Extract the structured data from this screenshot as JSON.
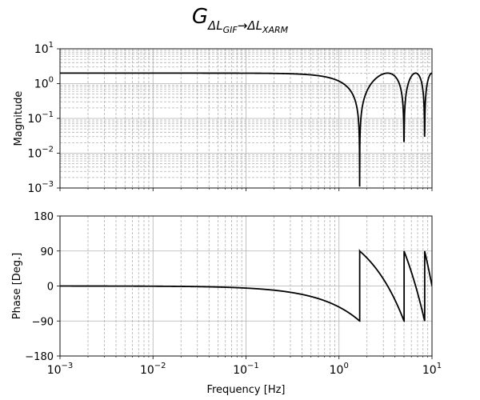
{
  "title": {
    "main": "G",
    "sub_left": "ΔL",
    "sub_left_index": "GIF",
    "arrow": "→",
    "sub_right": "ΔL",
    "sub_right_index": "XARM"
  },
  "chart_data": [
    {
      "type": "line",
      "panel": "magnitude",
      "xscale": "log",
      "yscale": "log",
      "xlim": [
        0.001,
        10
      ],
      "ylim": [
        0.001,
        10
      ],
      "xlabel": "",
      "ylabel": "Magnitude",
      "yticks": [
        0.001,
        0.01,
        0.1,
        1,
        10
      ],
      "ytick_labels": [
        [
          "10",
          "−3"
        ],
        [
          "10",
          "−2"
        ],
        [
          "10",
          "−1"
        ],
        [
          "10",
          "0"
        ],
        [
          "10",
          "1"
        ]
      ],
      "grid": "major solid, minor dashed",
      "series": [
        {
          "color": "#000000",
          "x": [
            0.001,
            0.01,
            0.1,
            0.3,
            0.5,
            0.8,
            1.2,
            1.5,
            1.66,
            1.72,
            1.9,
            2.3,
            3.0,
            3.33,
            3.8,
            4.4,
            4.95,
            5.05,
            5.5,
            6.2,
            6.66,
            7.3,
            8.2,
            8.33,
            8.7,
            9.5,
            10.0
          ],
          "y": [
            2.0,
            2.0,
            1.99,
            1.91,
            1.71,
            1.22,
            0.55,
            0.18,
            0.02,
            0.001,
            0.26,
            0.93,
            1.73,
            2.0,
            1.8,
            1.0,
            0.05,
            0.002,
            0.78,
            1.72,
            2.0,
            1.75,
            0.22,
            0.001,
            0.5,
            1.5,
            2.0
          ]
        }
      ]
    },
    {
      "type": "line",
      "panel": "phase",
      "xscale": "log",
      "yscale": "linear",
      "xlim": [
        0.001,
        10
      ],
      "ylim": [
        -180,
        180
      ],
      "xlabel": "Frequency [Hz]",
      "ylabel": "Phase [Deg.]",
      "yticks": [
        -180,
        -90,
        0,
        90,
        180
      ],
      "ytick_labels": [
        "−180",
        "−90",
        "0",
        "90",
        "180"
      ],
      "xtick_labels": [
        [
          "10",
          "−3"
        ],
        [
          "10",
          "−2"
        ],
        [
          "10",
          "−1"
        ],
        [
          "10",
          "0"
        ],
        [
          "10",
          "1"
        ]
      ],
      "grid": "major solid, minor dashed",
      "series": [
        {
          "color": "#000000",
          "segments": [
            {
              "x": [
                0.001,
                0.01,
                0.05,
                0.1,
                0.2,
                0.4,
                0.7,
                1.0,
                1.3,
                1.666
              ],
              "y": [
                -0.1,
                -1.1,
                -5.4,
                -10.8,
                -21.6,
                -43.2,
                -75.6,
                -108.0,
                -140.4,
                -180.0
              ]
            },
            {
              "x": [
                1.666,
                2.0,
                2.5,
                3.0,
                3.5,
                4.0,
                4.5,
                5.0
              ],
              "y": [
                0.0,
                -36.0,
                -90.0,
                -144.0,
                -198.0,
                -252.0,
                -306.0,
                -360.0
              ]
            },
            {
              "x": [
                5.0,
                5.5,
                6.0,
                6.5,
                7.0,
                7.5,
                8.0,
                8.333
              ],
              "y": [
                -360.0,
                -414.0,
                -468.0,
                -522.0,
                -576.0,
                -630.0,
                -684.0,
                -720.0
              ]
            },
            {
              "x": [
                8.333,
                9.0,
                10.0
              ],
              "y": [
                -720.0,
                -792.0,
                -900.0
              ]
            }
          ],
          "phase_display": "wrapped to (-180, 180] and shown as half-angle",
          "display_y_samples": {
            "x": [
              0.001,
              0.1,
              0.5,
              1.0,
              1.666,
              1.67,
              3.0,
              5.0,
              5.01,
              7.0,
              8.333,
              8.34,
              10.0
            ],
            "y": [
              0,
              -5,
              -27,
              -54,
              -90,
              90,
              18,
              -90,
              90,
              -18,
              -90,
              90,
              0
            ]
          }
        }
      ]
    }
  ]
}
